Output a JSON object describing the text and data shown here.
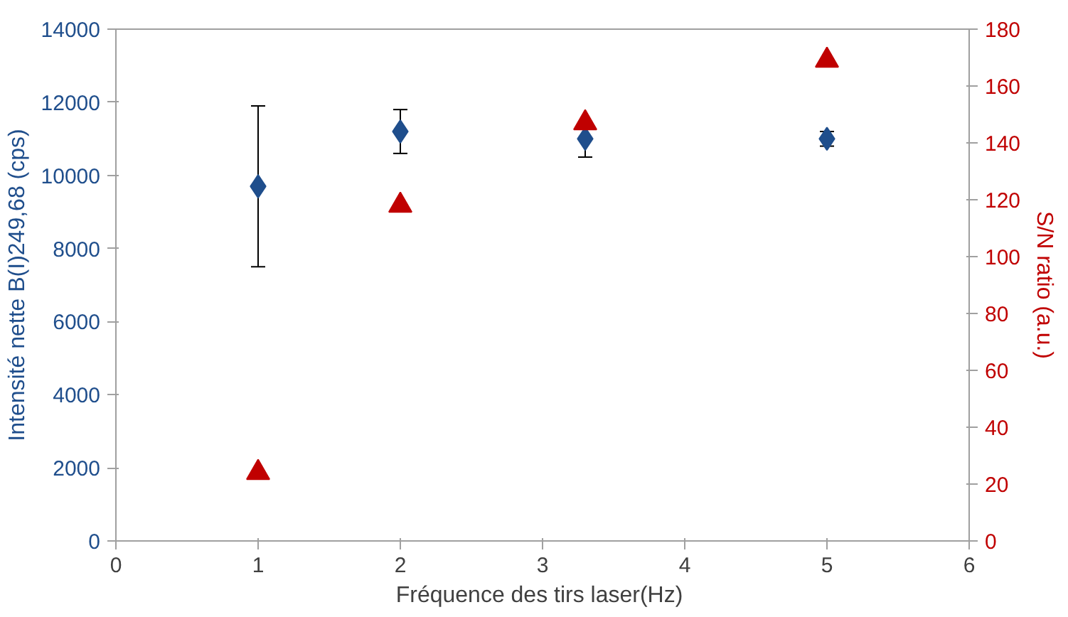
{
  "chart_data": {
    "type": "scatter",
    "xlabel": "Fréquence  des tirs laser(Hz)",
    "ylabel": "Intensité nette B(I)249,68 (cps)",
    "y2label": "S/N ratio (a.u.)",
    "x": [
      1,
      2,
      3.3,
      5
    ],
    "series": [
      {
        "color": "#1f4e8c",
        "marker": "diamond",
        "values": [
          9700,
          11200,
          11000,
          11000
        ],
        "errors": [
          [
            7500,
            11900
          ],
          [
            10600,
            11800
          ],
          [
            10500,
            11000
          ],
          [
            10800,
            11200
          ]
        ]
      },
      {
        "color": "#c00000",
        "marker": "triangle",
        "axis": "y2",
        "values": [
          24,
          118,
          147,
          169
        ]
      }
    ],
    "xlim": [
      0,
      6
    ],
    "xticks": [
      0,
      1,
      2,
      3,
      4,
      5,
      6
    ],
    "ylim": [
      0,
      14000
    ],
    "yticks": [
      0,
      2000,
      4000,
      6000,
      8000,
      10000,
      12000,
      14000
    ],
    "y2lim": [
      0,
      180
    ],
    "y2ticks": [
      0,
      20,
      40,
      60,
      80,
      100,
      120,
      140,
      160,
      180
    ],
    "grid": false
  }
}
